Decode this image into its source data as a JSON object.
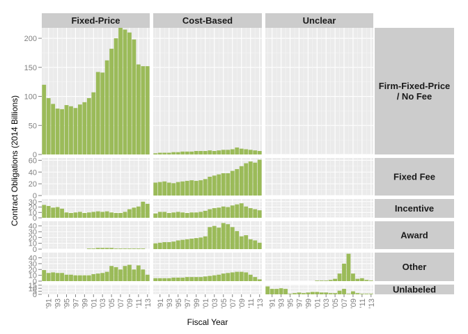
{
  "chart_data": {
    "type": "bar",
    "title": "",
    "xlabel": "Fiscal Year",
    "ylabel": "Contract Obligations (2014 Billions)",
    "bar_color": "#9bbb59",
    "panel_background": "#ebebeb",
    "gridline_color": "#ffffff",
    "strip_background": "#cccccc",
    "grid": true,
    "x": [
      1990,
      1991,
      1992,
      1993,
      1994,
      1995,
      1996,
      1997,
      1998,
      1999,
      2000,
      2001,
      2002,
      2003,
      2004,
      2005,
      2006,
      2007,
      2008,
      2009,
      2010,
      2011,
      2012,
      2013
    ],
    "x_tick_labels": [
      "'91",
      "'93",
      "'95",
      "'97",
      "'99",
      "'01",
      "'03",
      "'05",
      "'07",
      "'09",
      "'11",
      "'13"
    ],
    "columns": [
      "Fixed-Price",
      "Cost-Based",
      "Unclear"
    ],
    "rows": [
      {
        "label": "Firm-Fixed-Price / No Fee",
        "label_lines": [
          "Firm-Fixed-Price",
          "/ No Fee"
        ],
        "ylim": [
          0,
          218
        ],
        "ticks": [
          0,
          50,
          100,
          150,
          200
        ],
        "tick_labels": [
          "0",
          "50",
          "100",
          "150",
          "200"
        ]
      },
      {
        "label": "Fixed Fee",
        "label_lines": [
          "Fixed Fee"
        ],
        "ylim": [
          0,
          64
        ],
        "ticks": [
          0,
          20,
          40,
          60
        ],
        "tick_labels": [
          "0",
          "20",
          "40",
          "60"
        ]
      },
      {
        "label": "Incentive",
        "label_lines": [
          "Incentive"
        ],
        "ylim": [
          0,
          35
        ],
        "ticks": [
          0,
          10,
          20,
          30
        ],
        "tick_labels": [
          "0",
          "10",
          "20",
          "30"
        ]
      },
      {
        "label": "Award",
        "label_lines": [
          "Award"
        ],
        "ylim": [
          0,
          48
        ],
        "ticks": [
          0,
          10,
          20,
          30,
          40
        ],
        "tick_labels": [
          "0",
          "10",
          "20",
          "30",
          "40"
        ]
      },
      {
        "label": "Other",
        "label_lines": [
          "Other"
        ],
        "ylim": [
          0,
          49
        ],
        "ticks": [
          0,
          10,
          20,
          30,
          40
        ],
        "tick_labels": [
          "0",
          "10",
          "20",
          "30",
          "40"
        ]
      },
      {
        "label": "Unlabeled",
        "label_lines": [
          "Unlabeled"
        ],
        "ylim": [
          0,
          16
        ],
        "ticks": [
          0,
          5,
          10,
          15
        ],
        "tick_labels": [
          "0",
          "5",
          "10",
          "15"
        ]
      }
    ],
    "series": [
      {
        "row": "Firm-Fixed-Price / No Fee",
        "column": "Fixed-Price",
        "values": [
          120,
          97,
          87,
          79,
          78,
          85,
          83,
          80,
          86,
          90,
          97,
          107,
          142,
          141,
          162,
          182,
          200,
          218,
          215,
          210,
          198,
          155,
          152,
          152
        ]
      },
      {
        "row": "Firm-Fixed-Price / No Fee",
        "column": "Cost-Based",
        "values": [
          2,
          3,
          3,
          3,
          4,
          4,
          5,
          5,
          5,
          6,
          6,
          6,
          7,
          6,
          7,
          8,
          8,
          9,
          12,
          10,
          9,
          8,
          7,
          6
        ]
      },
      {
        "row": "Firm-Fixed-Price / No Fee",
        "column": "Unclear",
        "values": [
          0,
          0,
          0,
          0,
          0,
          0,
          0,
          0,
          0,
          0,
          0,
          0,
          0,
          0,
          0,
          0,
          0,
          0,
          0,
          0,
          0,
          0,
          0,
          0
        ]
      },
      {
        "row": "Fixed Fee",
        "column": "Fixed-Price",
        "values": [
          0,
          0,
          0,
          0,
          0,
          0,
          0,
          0,
          0,
          0,
          0,
          0,
          0,
          0,
          0,
          0,
          0,
          0,
          0,
          0,
          0,
          0,
          0,
          0
        ]
      },
      {
        "row": "Fixed Fee",
        "column": "Cost-Based",
        "values": [
          22,
          23,
          24,
          22,
          21,
          23,
          24,
          25,
          26,
          25,
          26,
          28,
          32,
          34,
          36,
          38,
          38,
          42,
          45,
          50,
          55,
          58,
          56,
          61
        ]
      },
      {
        "row": "Fixed Fee",
        "column": "Unclear",
        "values": [
          0,
          0,
          0,
          0,
          0,
          0,
          0,
          0,
          0,
          0,
          0,
          0,
          0,
          0,
          0,
          0,
          0,
          0,
          0,
          0,
          0,
          0,
          0,
          0
        ]
      },
      {
        "row": "Incentive",
        "column": "Fixed-Price",
        "values": [
          24,
          22,
          19,
          20,
          17,
          10,
          9,
          10,
          11,
          9,
          10,
          11,
          12,
          11,
          12,
          10,
          9,
          9,
          11,
          16,
          19,
          21,
          30,
          26
        ]
      },
      {
        "row": "Incentive",
        "column": "Cost-Based",
        "values": [
          8,
          11,
          11,
          9,
          10,
          11,
          10,
          9,
          10,
          10,
          11,
          13,
          16,
          18,
          19,
          21,
          20,
          23,
          25,
          27,
          21,
          18,
          16,
          14
        ]
      },
      {
        "row": "Incentive",
        "column": "Unclear",
        "values": [
          0,
          0,
          0,
          0,
          0,
          0,
          0,
          0,
          0,
          0,
          0,
          0,
          0,
          0,
          0,
          0,
          0,
          0,
          0,
          0,
          0,
          0,
          0,
          0
        ]
      },
      {
        "row": "Award",
        "column": "Fixed-Price",
        "values": [
          0,
          0,
          0,
          0,
          0,
          0,
          0,
          0,
          0,
          0,
          1,
          1,
          2,
          2,
          2,
          2,
          1,
          1,
          1,
          1,
          1,
          1,
          1,
          0
        ]
      },
      {
        "row": "Award",
        "column": "Cost-Based",
        "values": [
          10,
          11,
          12,
          12,
          13,
          15,
          16,
          17,
          18,
          19,
          20,
          22,
          38,
          40,
          37,
          45,
          43,
          38,
          31,
          22,
          24,
          17,
          15,
          11
        ]
      },
      {
        "row": "Award",
        "column": "Unclear",
        "values": [
          0,
          0,
          0,
          0,
          0,
          0,
          0,
          0,
          0,
          0,
          0,
          0,
          0,
          0,
          0,
          0,
          0,
          0,
          0,
          0,
          0,
          0,
          0,
          0
        ]
      },
      {
        "row": "Other",
        "column": "Fixed-Price",
        "values": [
          19,
          14,
          15,
          14,
          14,
          11,
          11,
          10,
          10,
          10,
          10,
          12,
          13,
          14,
          16,
          26,
          24,
          20,
          26,
          28,
          20,
          27,
          20,
          11
        ]
      },
      {
        "row": "Other",
        "column": "Cost-Based",
        "values": [
          5,
          5,
          5,
          5,
          6,
          6,
          6,
          7,
          7,
          7,
          7,
          8,
          9,
          10,
          11,
          13,
          14,
          15,
          16,
          16,
          15,
          11,
          7,
          3
        ]
      },
      {
        "row": "Other",
        "column": "Unclear",
        "values": [
          0,
          0,
          0,
          0,
          0,
          0,
          0,
          0,
          0,
          0,
          0,
          1,
          1,
          1,
          2,
          4,
          13,
          30,
          47,
          13,
          4,
          5,
          2,
          1
        ]
      },
      {
        "row": "Unlabeled",
        "column": "Fixed-Price",
        "values": [
          0,
          0,
          0,
          0,
          0,
          0,
          0,
          0,
          0,
          0,
          0,
          0,
          0,
          0,
          0,
          0,
          0,
          0,
          0,
          0,
          0,
          0,
          0,
          0
        ]
      },
      {
        "row": "Unlabeled",
        "column": "Cost-Based",
        "values": [
          0,
          0,
          0,
          0,
          0,
          0,
          0,
          0,
          0,
          0,
          0,
          0,
          0,
          0,
          0,
          0,
          0,
          0,
          0,
          0,
          0,
          0,
          0,
          0
        ]
      },
      {
        "row": "Unlabeled",
        "column": "Unclear",
        "values": [
          13,
          9,
          9,
          10,
          9,
          1,
          2,
          3,
          2,
          3,
          4,
          4,
          3,
          3,
          2,
          2,
          6,
          9,
          1,
          5,
          2,
          1,
          1,
          1
        ]
      }
    ]
  }
}
